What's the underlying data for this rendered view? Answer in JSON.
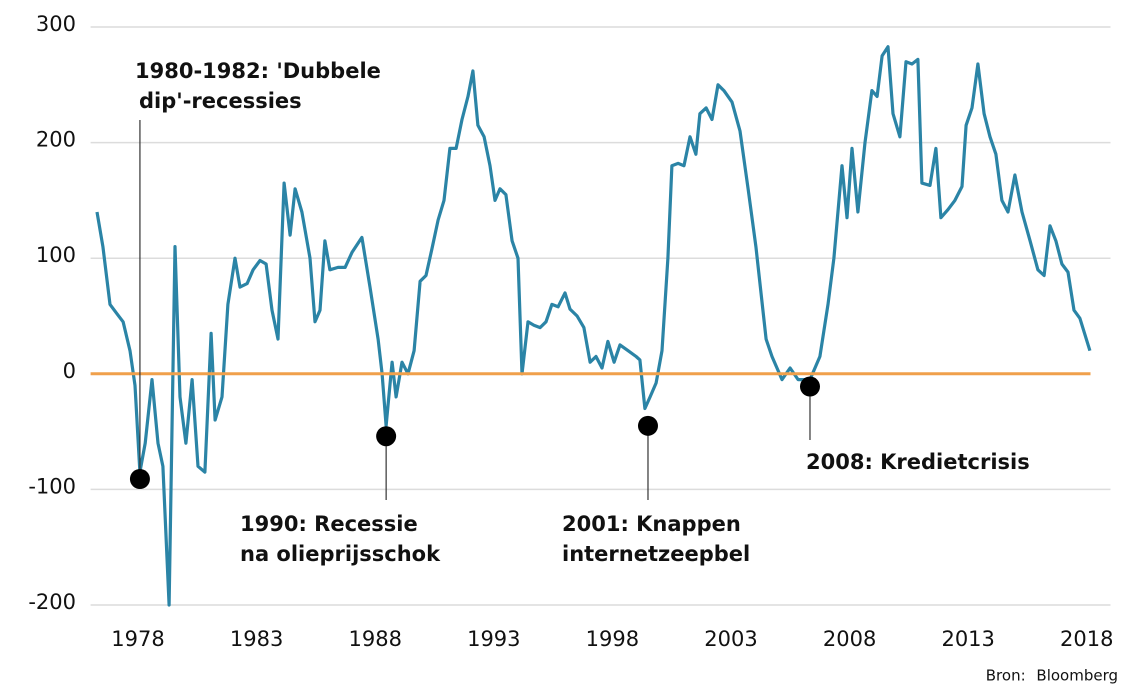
{
  "chart_data": {
    "type": "line",
    "x": [
      1976.27,
      1976.52,
      1976.82,
      1977.11,
      1977.37,
      1977.66,
      1977.87,
      1978.08,
      1978.3,
      1978.59,
      1978.84,
      1979.05,
      1979.31,
      1979.56,
      1979.77,
      1980.02,
      1980.28,
      1980.53,
      1980.82,
      1981.08,
      1981.25,
      1981.54,
      1981.79,
      1982.09,
      1982.3,
      1982.6,
      1982.85,
      1983.14,
      1983.4,
      1983.65,
      1983.9,
      1984.16,
      1984.41,
      1984.62,
      1984.91,
      1985.25,
      1985.46,
      1985.67,
      1985.88,
      1986.09,
      1986.43,
      1986.73,
      1987.02,
      1987.44,
      1987.78,
      1988.12,
      1988.29,
      1988.46,
      1988.71,
      1988.88,
      1989.13,
      1989.38,
      1989.64,
      1989.89,
      1990.14,
      1990.39,
      1990.65,
      1990.9,
      1991.15,
      1991.41,
      1991.66,
      1991.91,
      1992.12,
      1992.33,
      1992.59,
      1992.84,
      1993.05,
      1993.26,
      1993.51,
      1993.77,
      1994.02,
      1994.19,
      1994.44,
      1994.69,
      1994.95,
      1995.2,
      1995.45,
      1995.71,
      1996.0,
      1996.21,
      1996.51,
      1996.8,
      1997.06,
      1997.31,
      1997.56,
      1997.81,
      1998.07,
      1998.32,
      1998.66,
      1999.0,
      1999.16,
      1999.37,
      1999.59,
      1999.84,
      2000.09,
      2000.34,
      2000.51,
      2000.77,
      2001.02,
      2001.27,
      2001.52,
      2001.69,
      2001.95,
      2002.2,
      2002.45,
      2002.7,
      2003.04,
      2003.38,
      2003.72,
      2004.05,
      2004.48,
      2004.73,
      2005.15,
      2005.49,
      2005.83,
      2006.33,
      2006.75,
      2007.09,
      2007.34,
      2007.68,
      2007.89,
      2008.1,
      2008.35,
      2008.65,
      2008.94,
      2009.16,
      2009.37,
      2009.62,
      2009.83,
      2010.12,
      2010.38,
      2010.63,
      2010.88,
      2011.05,
      2011.39,
      2011.64,
      2011.85,
      2012.15,
      2012.44,
      2012.74,
      2012.91,
      2013.16,
      2013.41,
      2013.67,
      2013.92,
      2014.17,
      2014.42,
      2014.68,
      2014.97,
      2015.27,
      2015.61,
      2015.94,
      2016.2,
      2016.45,
      2016.7,
      2016.95,
      2017.21,
      2017.46,
      2017.71,
      2018.13
    ],
    "series": [
      {
        "color": "#2b84a6",
        "values": [
          140,
          110,
          60,
          52,
          45,
          20,
          -10,
          -85,
          -60,
          -5,
          -60,
          -80,
          -200,
          110,
          -20,
          -60,
          -5,
          -80,
          -85,
          35,
          -40,
          -20,
          60,
          100,
          75,
          78,
          90,
          98,
          95,
          55,
          30,
          165,
          120,
          160,
          140,
          100,
          45,
          55,
          115,
          90,
          92,
          92,
          105,
          118,
          75,
          30,
          0,
          -45,
          10,
          -20,
          10,
          0,
          20,
          80,
          85,
          108,
          133,
          150,
          195,
          195,
          220,
          240,
          262,
          215,
          205,
          180,
          150,
          160,
          155,
          115,
          100,
          0,
          45,
          42,
          40,
          45,
          60,
          58,
          70,
          56,
          50,
          40,
          10,
          15,
          5,
          28,
          10,
          25,
          20,
          15,
          12,
          -30,
          -20,
          -8,
          20,
          100,
          180,
          182,
          180,
          205,
          190,
          225,
          230,
          220,
          250,
          245,
          235,
          210,
          160,
          110,
          30,
          15,
          -5,
          5,
          -5,
          -5,
          15,
          60,
          100,
          180,
          135,
          195,
          140,
          200,
          245,
          240,
          275,
          283,
          225,
          205,
          270,
          268,
          272,
          165,
          163,
          195,
          135,
          142,
          150,
          162,
          215,
          230,
          268,
          225,
          205,
          190,
          150,
          140,
          172,
          140,
          115,
          90,
          85,
          128,
          115,
          95,
          88,
          55,
          48,
          20
        ]
      }
    ],
    "xlim": [
      1976,
      2019
    ],
    "xticks": [
      1978,
      1983,
      1988,
      1993,
      1998,
      2003,
      2008,
      2013,
      2018
    ],
    "ylim": [
      -200,
      300
    ],
    "yticks": [
      -200,
      -100,
      0,
      100,
      200,
      300
    ],
    "grid": true,
    "zero_line_color": "#f0a04b",
    "annotations": [
      {
        "x": 1978.08,
        "y": -91,
        "lines": [
          "1980-1982: 'Dubbele",
          "dip'-recessies"
        ]
      },
      {
        "x": 1988.46,
        "y": -54,
        "lines": [
          "1990: Recessie",
          "na olieprijsschok"
        ]
      },
      {
        "x": 1999.5,
        "y": -45,
        "lines": [
          "2001: Knappen",
          "internetzeepbel"
        ]
      },
      {
        "x": 2006.33,
        "y": -11,
        "lines": [
          "2008: Kredietcrisis"
        ]
      }
    ],
    "source": "Bron: Bloomberg"
  }
}
